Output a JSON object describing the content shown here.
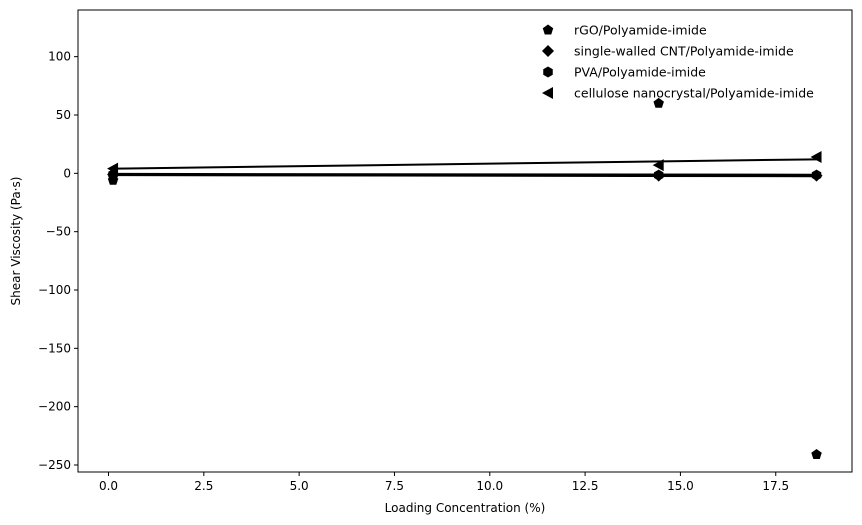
{
  "chart_data": {
    "type": "scatter",
    "xlabel": "Loading Concentration (%)",
    "ylabel": "Shear Viscosity (Pa·s)",
    "xlim": [
      -0.8,
      19.5
    ],
    "ylim": [
      -256,
      140
    ],
    "xticks": [
      0.0,
      2.5,
      5.0,
      7.5,
      10.0,
      12.5,
      15.0,
      17.5
    ],
    "xtick_labels": [
      "0.0",
      "2.5",
      "5.0",
      "7.5",
      "10.0",
      "12.5",
      "15.0",
      "17.5"
    ],
    "yticks": [
      100,
      50,
      0,
      -50,
      -100,
      -150,
      -200,
      -250
    ],
    "ytick_labels": [
      "100",
      "50",
      "0",
      "−50",
      "−100",
      "−150",
      "−200",
      "−250"
    ],
    "grid": false,
    "legend_position": "top-right",
    "series": [
      {
        "name": "rGO/Polyamide-imide",
        "marker": "pentagon",
        "color": "#000000",
        "x": [
          0.12,
          14.43,
          18.57
        ],
        "y": [
          -6,
          60,
          -241
        ],
        "fit_line": {
          "x": [
            0.12,
            18.57
          ],
          "y": [
            -1.5,
            -2.5
          ]
        }
      },
      {
        "name": "single-walled CNT/Polyamide-imide",
        "marker": "diamond",
        "color": "#000000",
        "x": [
          0.12,
          14.43,
          18.57
        ],
        "y": [
          -1,
          -2,
          -2
        ],
        "fit_line": {
          "x": [
            0.12,
            18.57
          ],
          "y": [
            -1,
            -2
          ]
        }
      },
      {
        "name": "PVA/Polyamide-imide",
        "marker": "hexagon",
        "color": "#000000",
        "x": [
          0.12,
          14.43,
          18.57
        ],
        "y": [
          -1,
          -1.5,
          -1.5
        ],
        "fit_line": {
          "x": [
            0.12,
            18.57
          ],
          "y": [
            -0.5,
            -1.2
          ]
        }
      },
      {
        "name": "cellulose nanocrystal/Polyamide-imide",
        "marker": "triangle-left",
        "color": "#000000",
        "x": [
          0.12,
          14.43,
          18.57
        ],
        "y": [
          4,
          7,
          14
        ],
        "fit_line": {
          "x": [
            0.12,
            18.57
          ],
          "y": [
            4,
            12
          ]
        }
      }
    ]
  }
}
